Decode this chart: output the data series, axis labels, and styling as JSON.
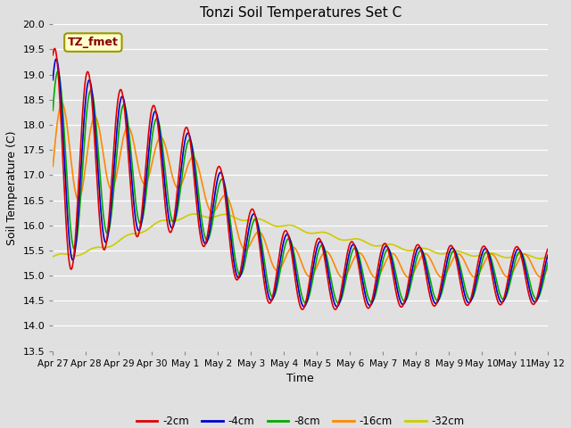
{
  "title": "Tonzi Soil Temperatures Set C",
  "ylabel": "Soil Temperature (C)",
  "xlabel": "Time",
  "ylim": [
    13.5,
    20.0
  ],
  "yticks": [
    13.5,
    14.0,
    14.5,
    15.0,
    15.5,
    16.0,
    16.5,
    17.0,
    17.5,
    18.0,
    18.5,
    19.0,
    19.5,
    20.0
  ],
  "x_labels": [
    "Apr 27",
    "Apr 28",
    "Apr 29",
    "Apr 30",
    "May 1",
    "May 2",
    "May 3",
    "May 4",
    "May 5",
    "May 6",
    "May 7",
    "May 8",
    "May 9",
    "May 10",
    "May 11",
    "May 12"
  ],
  "line_colors": [
    "#dd0000",
    "#0000cc",
    "#00aa00",
    "#ff8800",
    "#cccc00"
  ],
  "line_labels": [
    "-2cm",
    "-4cm",
    "-8cm",
    "-16cm",
    "-32cm"
  ],
  "background_color": "#e0e0e0",
  "grid_color": "#ffffff",
  "annotation_text": "TZ_fmet",
  "annotation_color": "#880000",
  "annotation_bg": "#ffffcc",
  "annotation_border": "#999900"
}
